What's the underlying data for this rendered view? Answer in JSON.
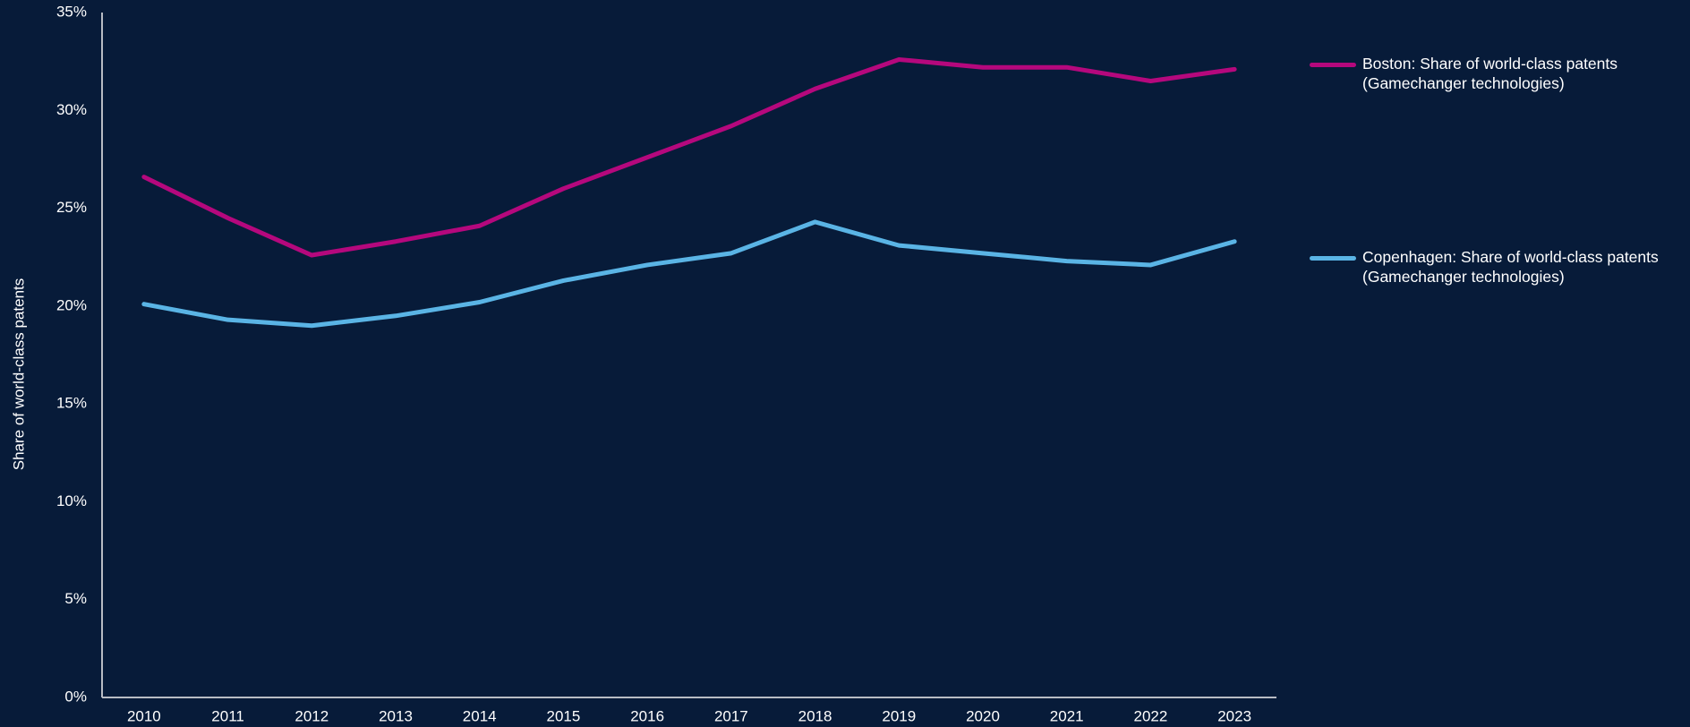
{
  "chart_data": {
    "type": "line",
    "y_label": "Share of world-class patents",
    "categories": [
      "2010",
      "2011",
      "2012",
      "2013",
      "2014",
      "2015",
      "2016",
      "2017",
      "2018",
      "2019",
      "2020",
      "2021",
      "2022",
      "2023"
    ],
    "series": [
      {
        "name": "Boston: Share of world-class patents (Gamechanger technologies)",
        "color": "#b5087d",
        "values": [
          26.6,
          24.5,
          22.6,
          23.3,
          24.1,
          26.0,
          27.6,
          29.2,
          31.1,
          32.6,
          32.2,
          32.2,
          31.5,
          32.1
        ]
      },
      {
        "name": "Copenhagen: Share of world-class patents (Gamechanger technologies)",
        "color": "#5ab4e5",
        "values": [
          20.1,
          19.3,
          19.0,
          19.5,
          20.2,
          21.3,
          22.1,
          22.7,
          24.3,
          23.1,
          22.7,
          22.3,
          22.1,
          23.3
        ]
      }
    ],
    "ylim": [
      0,
      35
    ],
    "yticks": [
      {
        "value": 0,
        "label": "0%"
      },
      {
        "value": 5,
        "label": "5%"
      },
      {
        "value": 10,
        "label": "10%"
      },
      {
        "value": 15,
        "label": "15%"
      },
      {
        "value": 20,
        "label": "20%"
      },
      {
        "value": 25,
        "label": "25%"
      },
      {
        "value": 30,
        "label": "30%"
      },
      {
        "value": 35,
        "label": "35%"
      }
    ],
    "grid": false,
    "legend": "right"
  }
}
